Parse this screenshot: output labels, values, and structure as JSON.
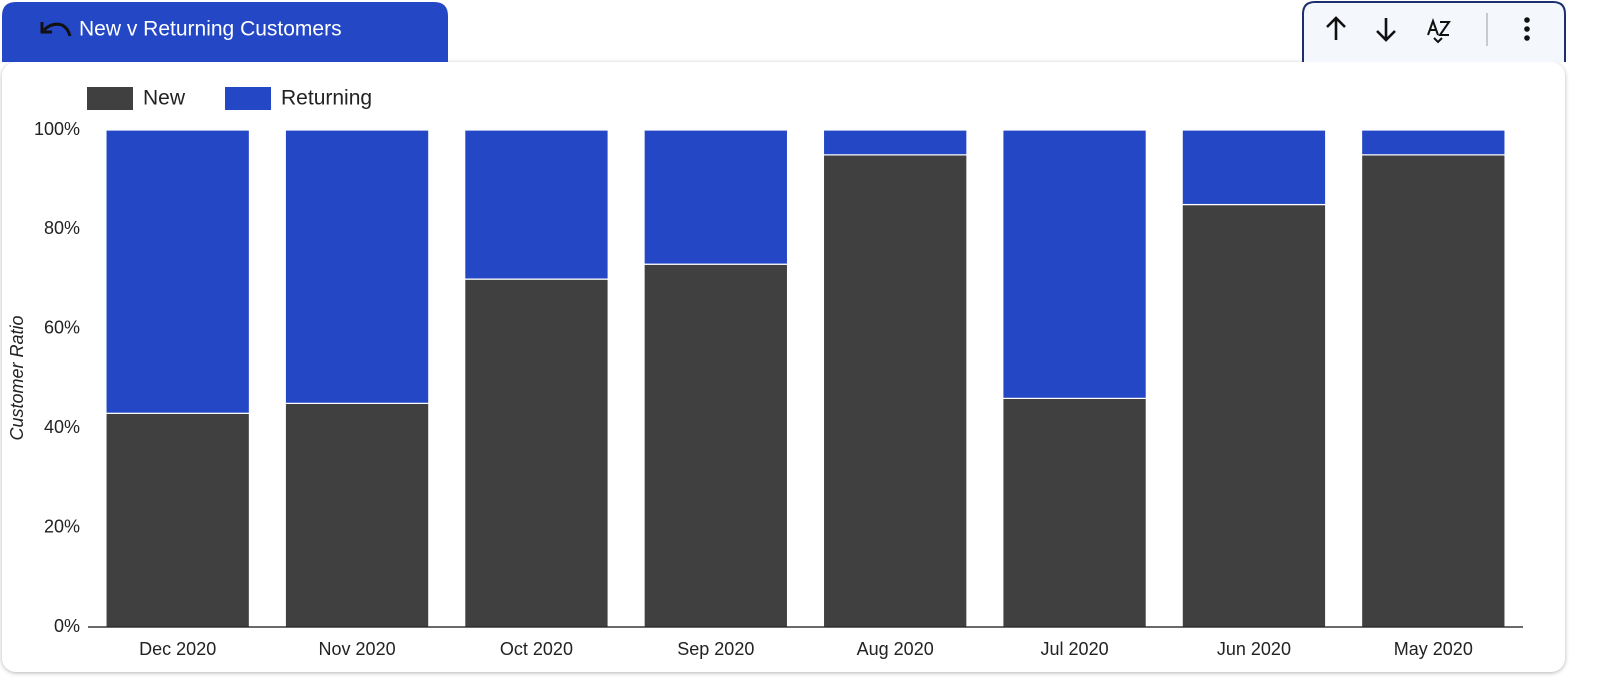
{
  "chart_data": {
    "type": "stacked_bar",
    "title": "New v Returning Customers",
    "y_label": "Customer Ratio",
    "categories": [
      "Dec 2020",
      "Nov 2020",
      "Oct 2020",
      "Sep 2020",
      "Aug 2020",
      "Jul 2020",
      "Jun 2020",
      "May 2020"
    ],
    "series": [
      {
        "name": "New",
        "color": "#404040",
        "values": [
          43,
          45,
          70,
          73,
          95,
          46,
          85,
          95
        ]
      },
      {
        "name": "Returning",
        "color": "#2347c5",
        "values": [
          57,
          55,
          30,
          27,
          5,
          54,
          15,
          5
        ]
      }
    ],
    "ylim": [
      0,
      100
    ],
    "yticks": [
      {
        "value": 0,
        "label": "0%"
      },
      {
        "value": 20,
        "label": "20%"
      },
      {
        "value": 40,
        "label": "40%"
      },
      {
        "value": 60,
        "label": "60%"
      },
      {
        "value": 80,
        "label": "80%"
      },
      {
        "value": 100,
        "label": "100%"
      }
    ],
    "grid": false,
    "legend": "top-left"
  }
}
